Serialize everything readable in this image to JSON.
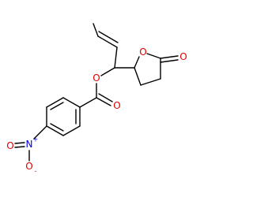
{
  "atoms": [
    {
      "label": "O"
    },
    {
      "label": "O"
    },
    {
      "label": "O"
    },
    {
      "label": "O"
    },
    {
      "label": "N",
      "charge": "+"
    },
    {
      "label": "O"
    },
    {
      "label": "O",
      "charge": "-"
    }
  ]
}
